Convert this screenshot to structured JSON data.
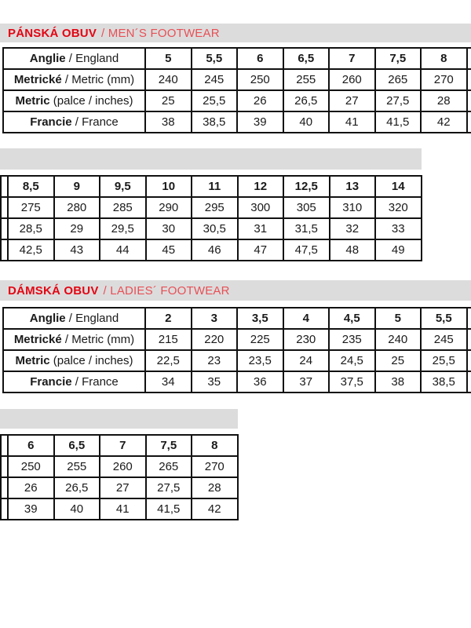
{
  "colors": {
    "accent_red": "#e30613",
    "secondary_red": "#e85055",
    "bar_gray": "#dcdcdd",
    "table_border": "#111111",
    "text": "#1a1a1a",
    "background": "#ffffff"
  },
  "sections": {
    "mens": {
      "title_cz": "PÁNSKÁ OBUV",
      "title_en": "/ MEN´S FOOTWEAR"
    },
    "ladies": {
      "title_cz": "DÁMSKÁ OBUV",
      "title_en": "/ LADIES´ FOOTWEAR"
    }
  },
  "row_labels": [
    {
      "bold": "Anglie",
      "rest": " / England"
    },
    {
      "bold": "Metrické",
      "rest": " / Metric (mm)"
    },
    {
      "bold": "Metric",
      "rest": " (palce / inches)"
    },
    {
      "bold": "Francie",
      "rest": " / France"
    }
  ],
  "tables": {
    "mens_part1": {
      "has_labels": true,
      "trailing_cut": true,
      "rows": [
        [
          "5",
          "5,5",
          "6",
          "6,5",
          "7",
          "7,5",
          "8"
        ],
        [
          "240",
          "245",
          "250",
          "255",
          "260",
          "265",
          "270"
        ],
        [
          "25",
          "25,5",
          "26",
          "26,5",
          "27",
          "27,5",
          "28"
        ],
        [
          "38",
          "38,5",
          "39",
          "40",
          "41",
          "41,5",
          "42"
        ]
      ]
    },
    "mens_part2": {
      "has_labels": false,
      "trailing_cut": false,
      "rows": [
        [
          "8,5",
          "9",
          "9,5",
          "10",
          "11",
          "12",
          "12,5",
          "13",
          "14"
        ],
        [
          "275",
          "280",
          "285",
          "290",
          "295",
          "300",
          "305",
          "310",
          "320"
        ],
        [
          "28,5",
          "29",
          "29,5",
          "30",
          "30,5",
          "31",
          "31,5",
          "32",
          "33"
        ],
        [
          "42,5",
          "43",
          "44",
          "45",
          "46",
          "47",
          "47,5",
          "48",
          "49"
        ]
      ]
    },
    "ladies_part1": {
      "has_labels": true,
      "trailing_cut": true,
      "rows": [
        [
          "2",
          "3",
          "3,5",
          "4",
          "4,5",
          "5",
          "5,5"
        ],
        [
          "215",
          "220",
          "225",
          "230",
          "235",
          "240",
          "245"
        ],
        [
          "22,5",
          "23",
          "23,5",
          "24",
          "24,5",
          "25",
          "25,5"
        ],
        [
          "34",
          "35",
          "36",
          "37",
          "37,5",
          "38",
          "38,5"
        ]
      ]
    },
    "ladies_part2": {
      "has_labels": false,
      "trailing_cut": false,
      "rows": [
        [
          "6",
          "6,5",
          "7",
          "7,5",
          "8"
        ],
        [
          "250",
          "255",
          "260",
          "265",
          "270"
        ],
        [
          "26",
          "26,5",
          "27",
          "27,5",
          "28"
        ],
        [
          "39",
          "40",
          "41",
          "41,5",
          "42"
        ]
      ]
    }
  }
}
